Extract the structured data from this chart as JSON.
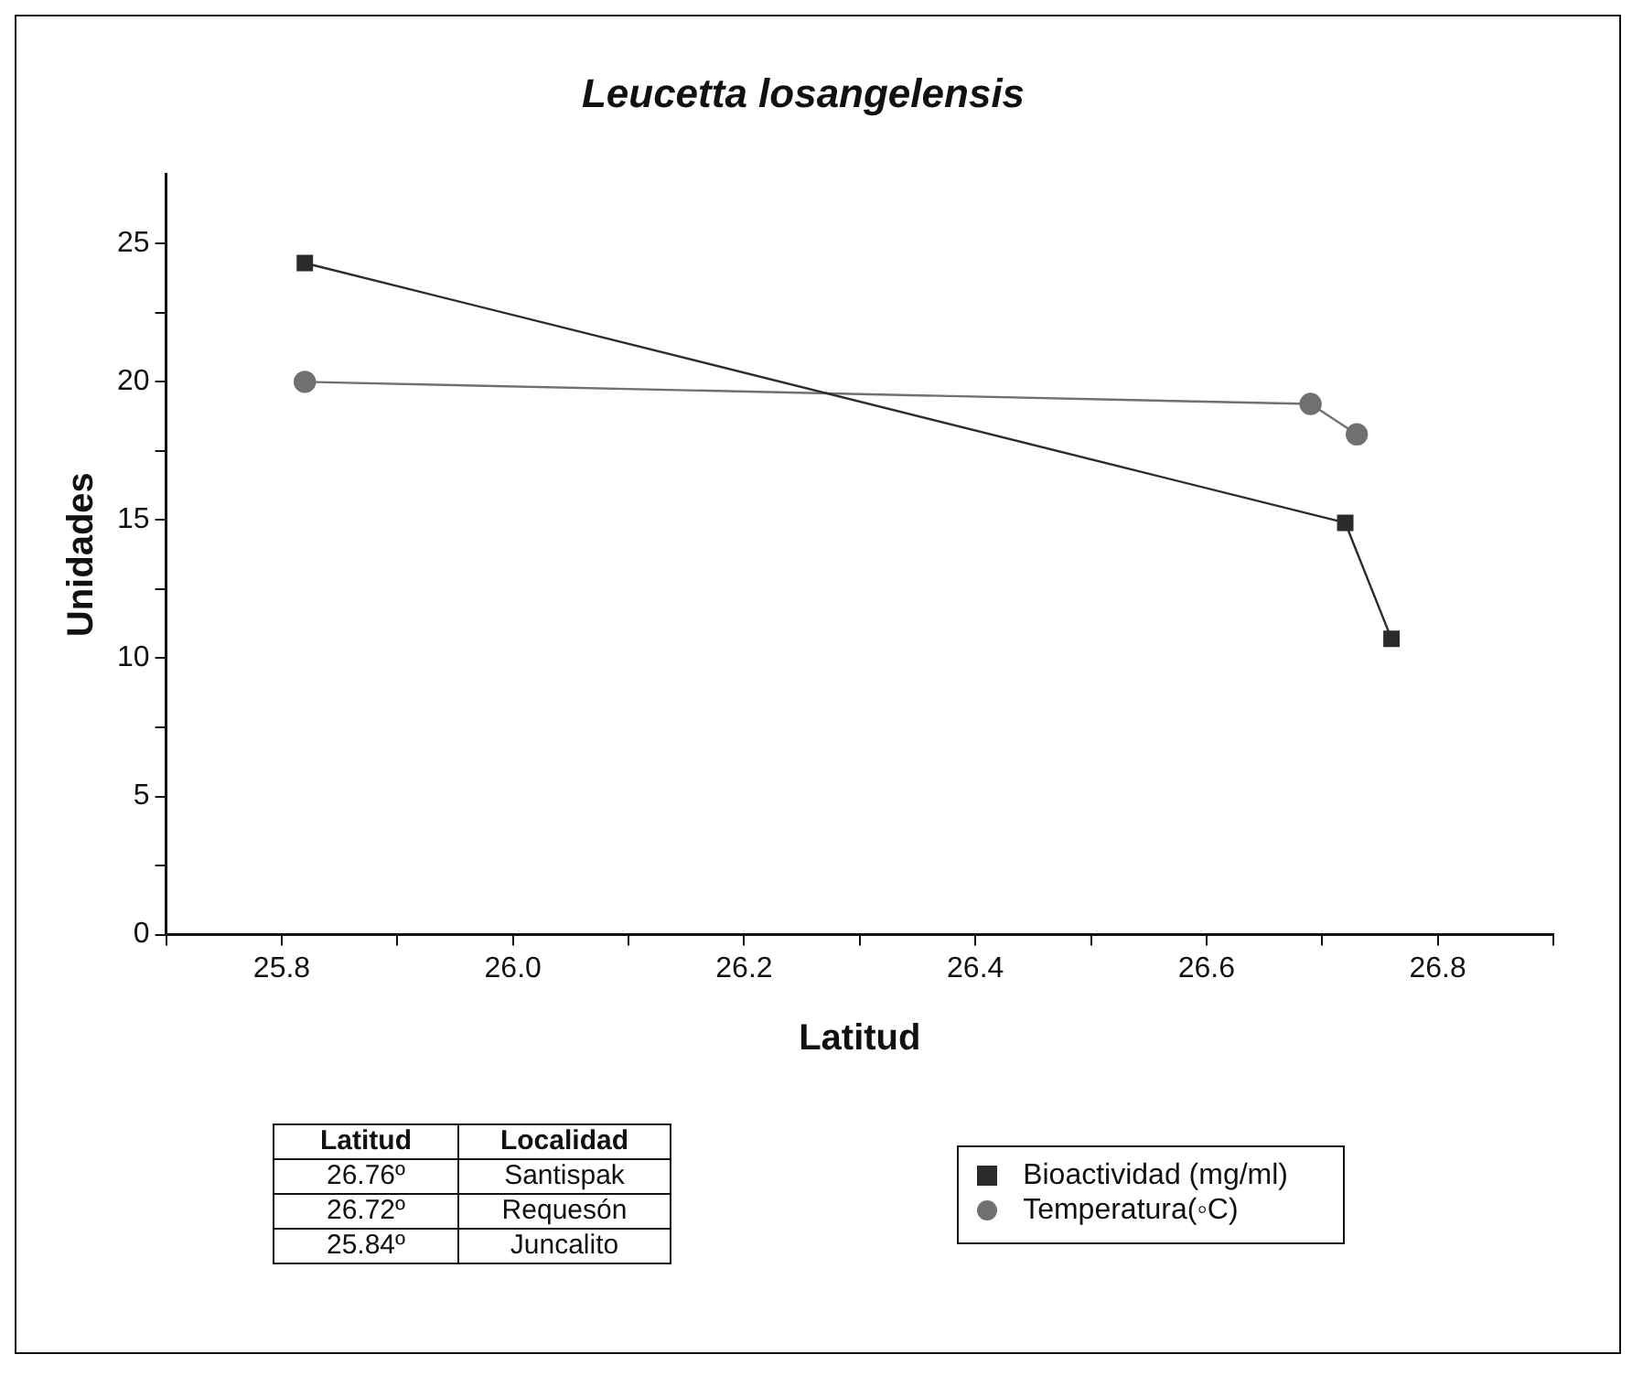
{
  "chart_data": {
    "type": "line",
    "title": "Leucetta losangelensis",
    "xlabel": "Latitud",
    "ylabel": "Unidades",
    "xlim": [
      25.7,
      26.9
    ],
    "xticks": [
      {
        "value": 25.7,
        "label": null
      },
      25.8,
      {
        "value": 25.9,
        "label": null
      },
      {
        "value": 26.0,
        "label": "26.0"
      },
      {
        "value": 26.1,
        "label": null
      },
      26.2,
      {
        "value": 26.3,
        "label": null
      },
      26.4,
      {
        "value": 26.5,
        "label": null
      },
      26.6,
      {
        "value": 26.7,
        "label": null
      },
      26.8,
      {
        "value": 26.9,
        "label": null
      }
    ],
    "ylim": [
      0,
      27.5
    ],
    "yticks": [
      0,
      {
        "value": 2.5,
        "label": null
      },
      5,
      {
        "value": 7.5,
        "label": null
      },
      10,
      {
        "value": 12.5,
        "label": null
      },
      15,
      {
        "value": 17.5,
        "label": null
      },
      20,
      {
        "value": 22.5,
        "label": null
      },
      25
    ],
    "grid": false,
    "legend": "bottom right",
    "line_style": "solid",
    "series": [
      {
        "name": "Bioactividad (mg/ml)",
        "color": "#2b2b2b",
        "marker": "square",
        "x": [
          25.82,
          26.72,
          26.76
        ],
        "values": [
          24.3,
          14.9,
          10.7
        ]
      },
      {
        "name": "Temperatura(◦C)",
        "color": "#707070",
        "marker": "circle",
        "x": [
          25.82,
          26.69,
          26.73
        ],
        "values": [
          20.0,
          19.2,
          18.1
        ]
      }
    ],
    "annotations": [
      "Latitud",
      "Localidad",
      "26.76º",
      "Santispak",
      "26.72º",
      "Requesón",
      "25.84º",
      "Juncalito"
    ]
  }
}
